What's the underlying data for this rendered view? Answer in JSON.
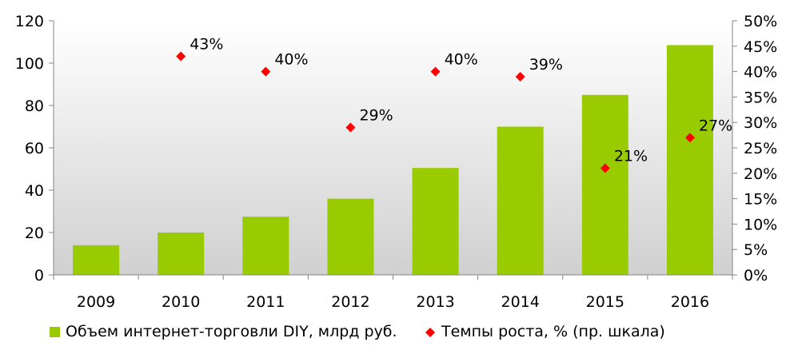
{
  "chart_data": {
    "type": "bar",
    "categories": [
      "2009",
      "2010",
      "2011",
      "2012",
      "2013",
      "2014",
      "2015",
      "2016"
    ],
    "series": [
      {
        "name": "Объем интернет-торговли DIY, млрд руб.",
        "type": "bar",
        "axis": "left",
        "values": [
          14,
          20,
          27.5,
          36,
          50.5,
          70,
          85,
          108.5
        ]
      },
      {
        "name": "Темпы роста, % (пр. шкала)",
        "type": "scatter",
        "axis": "right",
        "values": [
          null,
          43,
          40,
          29,
          40,
          39,
          21,
          27
        ],
        "labels": [
          "",
          "43%",
          "40%",
          "29%",
          "40%",
          "39%",
          "21%",
          "27%"
        ]
      }
    ],
    "yticks_left": [
      "0",
      "20",
      "40",
      "60",
      "80",
      "100",
      "120"
    ],
    "yticks_right": [
      "0%",
      "5%",
      "10%",
      "15%",
      "20%",
      "25%",
      "30%",
      "35%",
      "40%",
      "45%",
      "50%"
    ],
    "ylim_left": [
      0,
      120
    ],
    "ylim_right": [
      0,
      50
    ],
    "grid": false,
    "legend_position": "bottom",
    "colors": {
      "bar": "#99cc00",
      "marker": "#ff0000",
      "plot_bg": "#d9d9d9"
    }
  }
}
